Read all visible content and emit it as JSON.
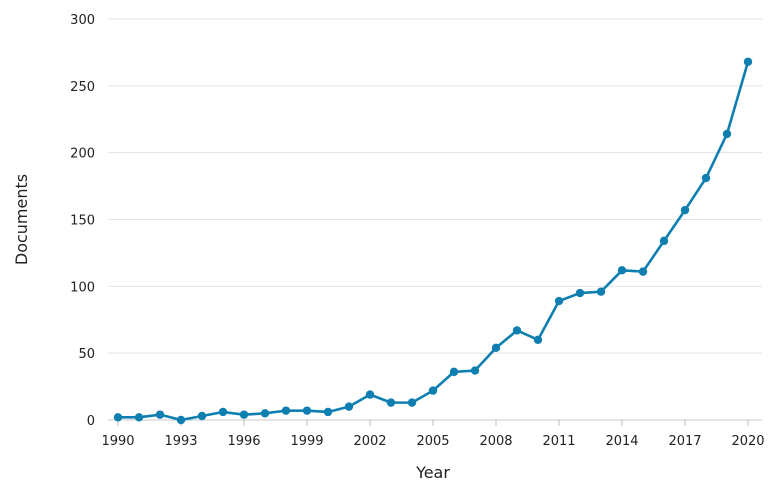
{
  "chart_data": {
    "type": "line",
    "xlabel": "Year",
    "ylabel": "Documents",
    "xlim": [
      1990,
      2020
    ],
    "ylim": [
      0,
      300
    ],
    "x_ticks": [
      1990,
      1993,
      1996,
      1999,
      2002,
      2005,
      2008,
      2011,
      2014,
      2017,
      2020
    ],
    "y_ticks": [
      0,
      50,
      100,
      150,
      200,
      250,
      300
    ],
    "grid": "horizontal",
    "series": [
      {
        "color": "#0e7fb0",
        "x": [
          1990,
          1991,
          1992,
          1993,
          1994,
          1995,
          1996,
          1997,
          1998,
          1999,
          2000,
          2001,
          2002,
          2003,
          2004,
          2005,
          2006,
          2007,
          2008,
          2009,
          2010,
          2011,
          2012,
          2013,
          2014,
          2015,
          2016,
          2017,
          2018,
          2019,
          2020
        ],
        "y": [
          2,
          2,
          4,
          0,
          3,
          6,
          4,
          5,
          7,
          7,
          6,
          10,
          19,
          13,
          13,
          22,
          36,
          37,
          54,
          67,
          60,
          89,
          95,
          96,
          112,
          111,
          134,
          157,
          181,
          214,
          268
        ]
      }
    ]
  }
}
